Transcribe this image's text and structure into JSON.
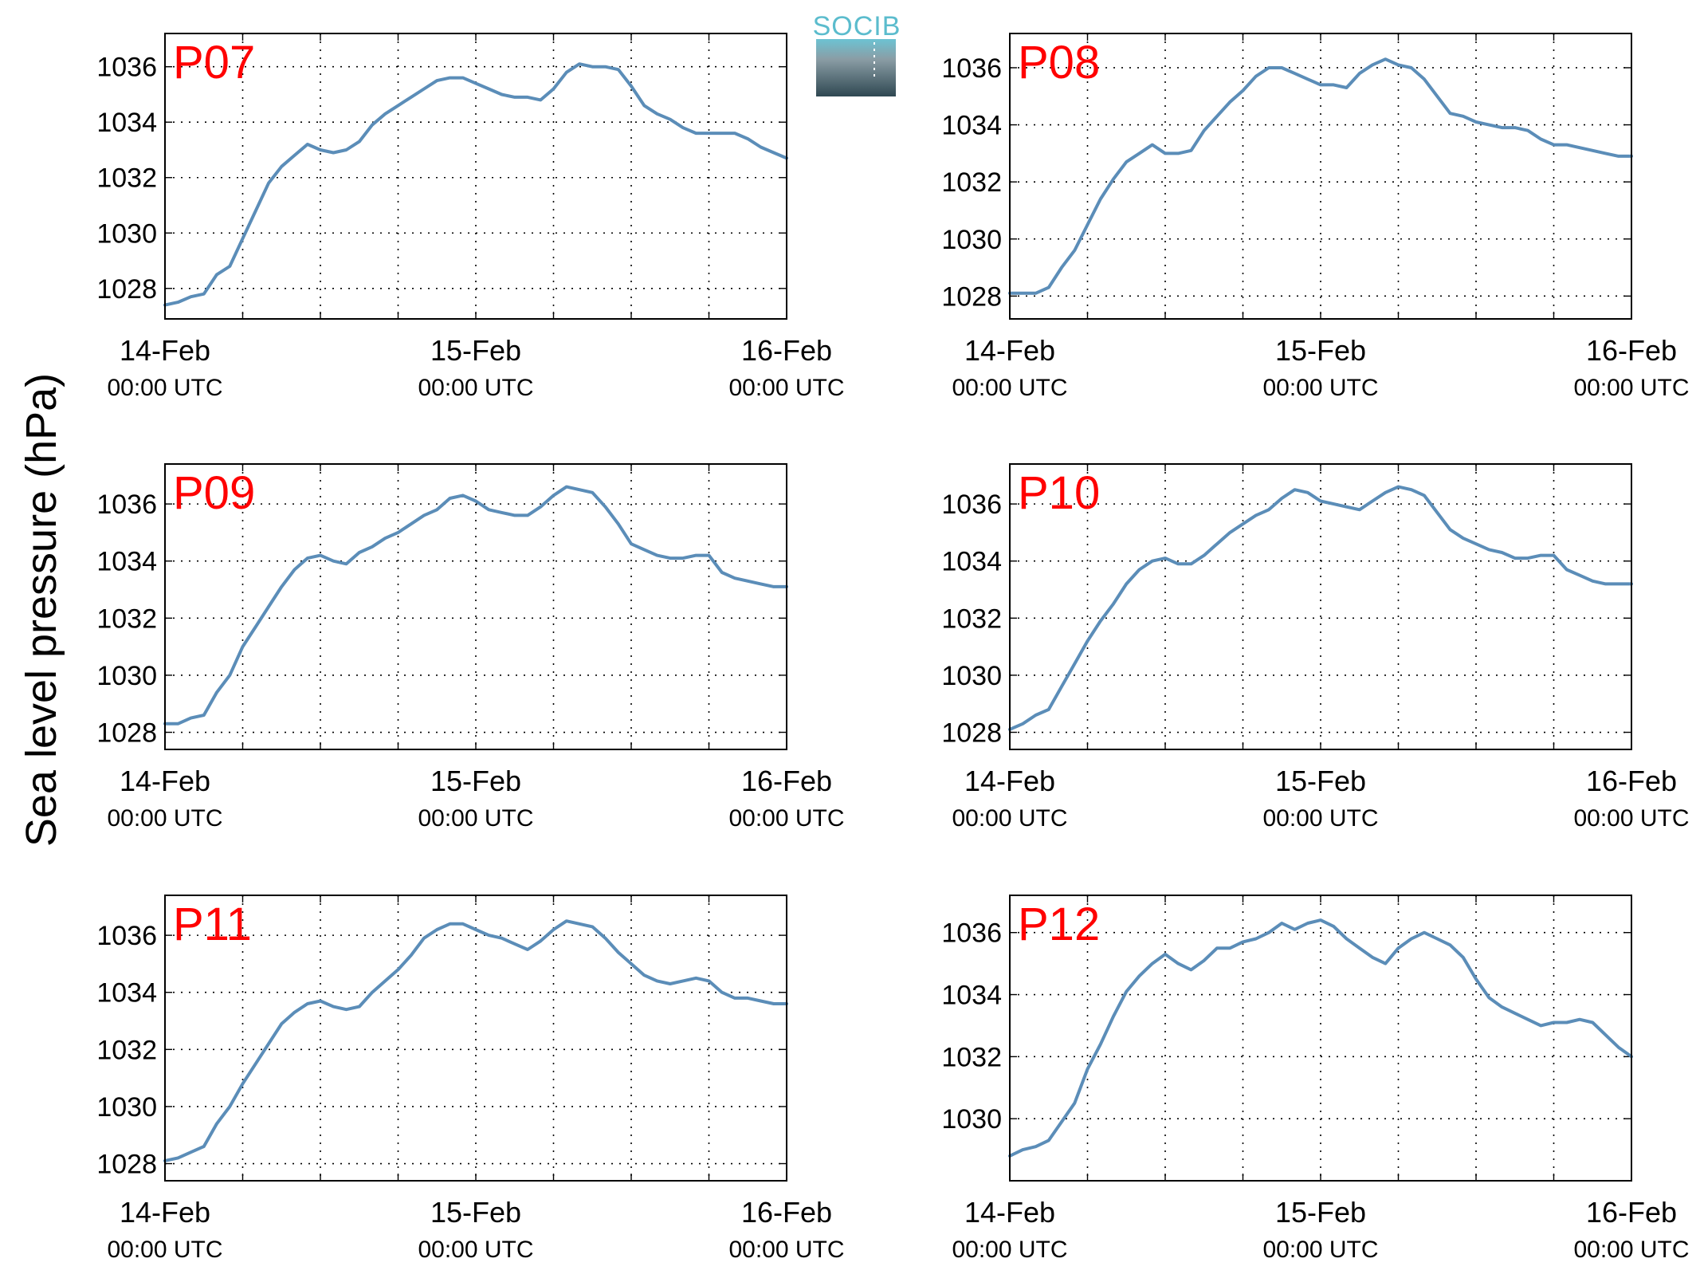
{
  "figure": {
    "ylabel": "Sea level pressure (hPa)",
    "logo_text": "SOCIB",
    "logo_colors": {
      "text": "#5bbccd",
      "top": "#6cc3d3",
      "bottom": "#2f4852"
    },
    "line_color": "#5b8db8",
    "label_color": "#ff0000"
  },
  "chart_data": [
    {
      "type": "line",
      "title": "P07",
      "x_ticks": [
        {
          "day": "14-Feb",
          "time": "00:00 UTC"
        },
        {
          "day": "15-Feb",
          "time": "00:00 UTC"
        },
        {
          "day": "16-Feb",
          "time": "00:00 UTC"
        }
      ],
      "xlim": [
        "2013-02-14T00:00Z",
        "2013-02-16T00:00Z"
      ],
      "ylim": [
        1026.9,
        1037.2
      ],
      "yticks": [
        1028,
        1030,
        1032,
        1034,
        1036
      ],
      "grid": true,
      "x": [
        "2013-02-14T00:00Z",
        "2013-02-14T01:00Z",
        "2013-02-14T02:00Z",
        "2013-02-14T03:00Z",
        "2013-02-14T04:00Z",
        "2013-02-14T05:00Z",
        "2013-02-14T06:00Z",
        "2013-02-14T07:00Z",
        "2013-02-14T08:00Z",
        "2013-02-14T09:00Z",
        "2013-02-14T10:00Z",
        "2013-02-14T11:00Z",
        "2013-02-14T12:00Z",
        "2013-02-14T13:00Z",
        "2013-02-14T14:00Z",
        "2013-02-14T15:00Z",
        "2013-02-14T16:00Z",
        "2013-02-14T17:00Z",
        "2013-02-14T18:00Z",
        "2013-02-14T19:00Z",
        "2013-02-14T20:00Z",
        "2013-02-14T21:00Z",
        "2013-02-14T22:00Z",
        "2013-02-14T23:00Z",
        "2013-02-15T00:00Z",
        "2013-02-15T01:00Z",
        "2013-02-15T02:00Z",
        "2013-02-15T03:00Z",
        "2013-02-15T04:00Z",
        "2013-02-15T05:00Z",
        "2013-02-15T06:00Z",
        "2013-02-15T07:00Z",
        "2013-02-15T08:00Z",
        "2013-02-15T09:00Z",
        "2013-02-15T10:00Z",
        "2013-02-15T11:00Z",
        "2013-02-15T12:00Z",
        "2013-02-15T13:00Z",
        "2013-02-15T14:00Z",
        "2013-02-15T15:00Z",
        "2013-02-15T16:00Z",
        "2013-02-15T17:00Z",
        "2013-02-15T18:00Z",
        "2013-02-15T19:00Z",
        "2013-02-15T20:00Z",
        "2013-02-15T21:00Z",
        "2013-02-15T22:00Z",
        "2013-02-15T23:00Z",
        "2013-02-16T00:00Z"
      ],
      "y": [
        1027.4,
        1027.5,
        1027.7,
        1027.8,
        1028.5,
        1028.8,
        1029.8,
        1030.8,
        1031.8,
        1032.4,
        1032.8,
        1033.2,
        1033.0,
        1032.9,
        1033.0,
        1033.3,
        1033.9,
        1034.3,
        1034.6,
        1034.9,
        1035.2,
        1035.5,
        1035.6,
        1035.6,
        1035.4,
        1035.2,
        1035.0,
        1034.9,
        1034.9,
        1034.8,
        1035.2,
        1035.8,
        1036.1,
        1036.0,
        1036.0,
        1035.9,
        1035.3,
        1034.6,
        1034.3,
        1034.1,
        1033.8,
        1033.6,
        1033.6,
        1033.6,
        1033.6,
        1033.4,
        1033.1,
        1032.9,
        1032.7
      ]
    },
    {
      "type": "line",
      "title": "P08",
      "x_ticks": [
        {
          "day": "14-Feb",
          "time": "00:00 UTC"
        },
        {
          "day": "15-Feb",
          "time": "00:00 UTC"
        },
        {
          "day": "16-Feb",
          "time": "00:00 UTC"
        }
      ],
      "xlim": [
        "2013-02-14T00:00Z",
        "2013-02-16T00:00Z"
      ],
      "ylim": [
        1027.2,
        1037.2
      ],
      "yticks": [
        1028,
        1030,
        1032,
        1034,
        1036
      ],
      "grid": true,
      "x": [
        "2013-02-14T00:00Z",
        "2013-02-14T01:00Z",
        "2013-02-14T02:00Z",
        "2013-02-14T03:00Z",
        "2013-02-14T04:00Z",
        "2013-02-14T05:00Z",
        "2013-02-14T06:00Z",
        "2013-02-14T07:00Z",
        "2013-02-14T08:00Z",
        "2013-02-14T09:00Z",
        "2013-02-14T10:00Z",
        "2013-02-14T11:00Z",
        "2013-02-14T12:00Z",
        "2013-02-14T13:00Z",
        "2013-02-14T14:00Z",
        "2013-02-14T15:00Z",
        "2013-02-14T16:00Z",
        "2013-02-14T17:00Z",
        "2013-02-14T18:00Z",
        "2013-02-14T19:00Z",
        "2013-02-14T20:00Z",
        "2013-02-14T21:00Z",
        "2013-02-14T22:00Z",
        "2013-02-14T23:00Z",
        "2013-02-15T00:00Z",
        "2013-02-15T01:00Z",
        "2013-02-15T02:00Z",
        "2013-02-15T03:00Z",
        "2013-02-15T04:00Z",
        "2013-02-15T05:00Z",
        "2013-02-15T06:00Z",
        "2013-02-15T07:00Z",
        "2013-02-15T08:00Z",
        "2013-02-15T09:00Z",
        "2013-02-15T10:00Z",
        "2013-02-15T11:00Z",
        "2013-02-15T12:00Z",
        "2013-02-15T13:00Z",
        "2013-02-15T14:00Z",
        "2013-02-15T15:00Z",
        "2013-02-15T16:00Z",
        "2013-02-15T17:00Z",
        "2013-02-15T18:00Z",
        "2013-02-15T19:00Z",
        "2013-02-15T20:00Z",
        "2013-02-15T21:00Z",
        "2013-02-15T22:00Z",
        "2013-02-15T23:00Z",
        "2013-02-16T00:00Z"
      ],
      "y": [
        1028.1,
        1028.1,
        1028.1,
        1028.3,
        1029.0,
        1029.6,
        1030.5,
        1031.4,
        1032.1,
        1032.7,
        1033.0,
        1033.3,
        1033.0,
        1033.0,
        1033.1,
        1033.8,
        1034.3,
        1034.8,
        1035.2,
        1035.7,
        1036.0,
        1036.0,
        1035.8,
        1035.6,
        1035.4,
        1035.4,
        1035.3,
        1035.8,
        1036.1,
        1036.3,
        1036.1,
        1036.0,
        1035.6,
        1035.0,
        1034.4,
        1034.3,
        1034.1,
        1034.0,
        1033.9,
        1033.9,
        1033.8,
        1033.5,
        1033.3,
        1033.3,
        1033.2,
        1033.1,
        1033.0,
        1032.9,
        1032.9
      ]
    },
    {
      "type": "line",
      "title": "P09",
      "x_ticks": [
        {
          "day": "14-Feb",
          "time": "00:00 UTC"
        },
        {
          "day": "15-Feb",
          "time": "00:00 UTC"
        },
        {
          "day": "16-Feb",
          "time": "00:00 UTC"
        }
      ],
      "xlim": [
        "2013-02-14T00:00Z",
        "2013-02-16T00:00Z"
      ],
      "ylim": [
        1027.4,
        1037.4
      ],
      "yticks": [
        1028,
        1030,
        1032,
        1034,
        1036
      ],
      "grid": true,
      "x": [
        "2013-02-14T00:00Z",
        "2013-02-14T01:00Z",
        "2013-02-14T02:00Z",
        "2013-02-14T03:00Z",
        "2013-02-14T04:00Z",
        "2013-02-14T05:00Z",
        "2013-02-14T06:00Z",
        "2013-02-14T07:00Z",
        "2013-02-14T08:00Z",
        "2013-02-14T09:00Z",
        "2013-02-14T10:00Z",
        "2013-02-14T11:00Z",
        "2013-02-14T12:00Z",
        "2013-02-14T13:00Z",
        "2013-02-14T14:00Z",
        "2013-02-14T15:00Z",
        "2013-02-14T16:00Z",
        "2013-02-14T17:00Z",
        "2013-02-14T18:00Z",
        "2013-02-14T19:00Z",
        "2013-02-14T20:00Z",
        "2013-02-14T21:00Z",
        "2013-02-14T22:00Z",
        "2013-02-14T23:00Z",
        "2013-02-15T00:00Z",
        "2013-02-15T01:00Z",
        "2013-02-15T02:00Z",
        "2013-02-15T03:00Z",
        "2013-02-15T04:00Z",
        "2013-02-15T05:00Z",
        "2013-02-15T06:00Z",
        "2013-02-15T07:00Z",
        "2013-02-15T08:00Z",
        "2013-02-15T09:00Z",
        "2013-02-15T10:00Z",
        "2013-02-15T11:00Z",
        "2013-02-15T12:00Z",
        "2013-02-15T13:00Z",
        "2013-02-15T14:00Z",
        "2013-02-15T15:00Z",
        "2013-02-15T16:00Z",
        "2013-02-15T17:00Z",
        "2013-02-15T18:00Z",
        "2013-02-15T19:00Z",
        "2013-02-15T20:00Z",
        "2013-02-15T21:00Z",
        "2013-02-15T22:00Z",
        "2013-02-15T23:00Z",
        "2013-02-16T00:00Z"
      ],
      "y": [
        1028.3,
        1028.3,
        1028.5,
        1028.6,
        1029.4,
        1030.0,
        1031.0,
        1031.7,
        1032.4,
        1033.1,
        1033.7,
        1034.1,
        1034.2,
        1034.0,
        1033.9,
        1034.3,
        1034.5,
        1034.8,
        1035.0,
        1035.3,
        1035.6,
        1035.8,
        1036.2,
        1036.3,
        1036.1,
        1035.8,
        1035.7,
        1035.6,
        1035.6,
        1035.9,
        1036.3,
        1036.6,
        1036.5,
        1036.4,
        1035.9,
        1035.3,
        1034.6,
        1034.4,
        1034.2,
        1034.1,
        1034.1,
        1034.2,
        1034.2,
        1033.6,
        1033.4,
        1033.3,
        1033.2,
        1033.1,
        1033.1
      ]
    },
    {
      "type": "line",
      "title": "P10",
      "x_ticks": [
        {
          "day": "14-Feb",
          "time": "00:00 UTC"
        },
        {
          "day": "15-Feb",
          "time": "00:00 UTC"
        },
        {
          "day": "16-Feb",
          "time": "00:00 UTC"
        }
      ],
      "xlim": [
        "2013-02-14T00:00Z",
        "2013-02-16T00:00Z"
      ],
      "ylim": [
        1027.4,
        1037.4
      ],
      "yticks": [
        1028,
        1030,
        1032,
        1034,
        1036
      ],
      "grid": true,
      "x": [
        "2013-02-14T00:00Z",
        "2013-02-14T01:00Z",
        "2013-02-14T02:00Z",
        "2013-02-14T03:00Z",
        "2013-02-14T04:00Z",
        "2013-02-14T05:00Z",
        "2013-02-14T06:00Z",
        "2013-02-14T07:00Z",
        "2013-02-14T08:00Z",
        "2013-02-14T09:00Z",
        "2013-02-14T10:00Z",
        "2013-02-14T11:00Z",
        "2013-02-14T12:00Z",
        "2013-02-14T13:00Z",
        "2013-02-14T14:00Z",
        "2013-02-14T15:00Z",
        "2013-02-14T16:00Z",
        "2013-02-14T17:00Z",
        "2013-02-14T18:00Z",
        "2013-02-14T19:00Z",
        "2013-02-14T20:00Z",
        "2013-02-14T21:00Z",
        "2013-02-14T22:00Z",
        "2013-02-14T23:00Z",
        "2013-02-15T00:00Z",
        "2013-02-15T01:00Z",
        "2013-02-15T02:00Z",
        "2013-02-15T03:00Z",
        "2013-02-15T04:00Z",
        "2013-02-15T05:00Z",
        "2013-02-15T06:00Z",
        "2013-02-15T07:00Z",
        "2013-02-15T08:00Z",
        "2013-02-15T09:00Z",
        "2013-02-15T10:00Z",
        "2013-02-15T11:00Z",
        "2013-02-15T12:00Z",
        "2013-02-15T13:00Z",
        "2013-02-15T14:00Z",
        "2013-02-15T15:00Z",
        "2013-02-15T16:00Z",
        "2013-02-15T17:00Z",
        "2013-02-15T18:00Z",
        "2013-02-15T19:00Z",
        "2013-02-15T20:00Z",
        "2013-02-15T21:00Z",
        "2013-02-15T22:00Z",
        "2013-02-15T23:00Z",
        "2013-02-16T00:00Z"
      ],
      "y": [
        1028.1,
        1028.3,
        1028.6,
        1028.8,
        1029.6,
        1030.4,
        1031.2,
        1031.9,
        1032.5,
        1033.2,
        1033.7,
        1034.0,
        1034.1,
        1033.9,
        1033.9,
        1034.2,
        1034.6,
        1035.0,
        1035.3,
        1035.6,
        1035.8,
        1036.2,
        1036.5,
        1036.4,
        1036.1,
        1036.0,
        1035.9,
        1035.8,
        1036.1,
        1036.4,
        1036.6,
        1036.5,
        1036.3,
        1035.7,
        1035.1,
        1034.8,
        1034.6,
        1034.4,
        1034.3,
        1034.1,
        1034.1,
        1034.2,
        1034.2,
        1033.7,
        1033.5,
        1033.3,
        1033.2,
        1033.2,
        1033.2
      ]
    },
    {
      "type": "line",
      "title": "P11",
      "x_ticks": [
        {
          "day": "14-Feb",
          "time": "00:00 UTC"
        },
        {
          "day": "15-Feb",
          "time": "00:00 UTC"
        },
        {
          "day": "16-Feb",
          "time": "00:00 UTC"
        }
      ],
      "xlim": [
        "2013-02-14T00:00Z",
        "2013-02-16T00:00Z"
      ],
      "ylim": [
        1027.4,
        1037.4
      ],
      "yticks": [
        1028,
        1030,
        1032,
        1034,
        1036
      ],
      "grid": true,
      "x": [
        "2013-02-14T00:00Z",
        "2013-02-14T01:00Z",
        "2013-02-14T02:00Z",
        "2013-02-14T03:00Z",
        "2013-02-14T04:00Z",
        "2013-02-14T05:00Z",
        "2013-02-14T06:00Z",
        "2013-02-14T07:00Z",
        "2013-02-14T08:00Z",
        "2013-02-14T09:00Z",
        "2013-02-14T10:00Z",
        "2013-02-14T11:00Z",
        "2013-02-14T12:00Z",
        "2013-02-14T13:00Z",
        "2013-02-14T14:00Z",
        "2013-02-14T15:00Z",
        "2013-02-14T16:00Z",
        "2013-02-14T17:00Z",
        "2013-02-14T18:00Z",
        "2013-02-14T19:00Z",
        "2013-02-14T20:00Z",
        "2013-02-14T21:00Z",
        "2013-02-14T22:00Z",
        "2013-02-14T23:00Z",
        "2013-02-15T00:00Z",
        "2013-02-15T01:00Z",
        "2013-02-15T02:00Z",
        "2013-02-15T03:00Z",
        "2013-02-15T04:00Z",
        "2013-02-15T05:00Z",
        "2013-02-15T06:00Z",
        "2013-02-15T07:00Z",
        "2013-02-15T08:00Z",
        "2013-02-15T09:00Z",
        "2013-02-15T10:00Z",
        "2013-02-15T11:00Z",
        "2013-02-15T12:00Z",
        "2013-02-15T13:00Z",
        "2013-02-15T14:00Z",
        "2013-02-15T15:00Z",
        "2013-02-15T16:00Z",
        "2013-02-15T17:00Z",
        "2013-02-15T18:00Z",
        "2013-02-15T19:00Z",
        "2013-02-15T20:00Z",
        "2013-02-15T21:00Z",
        "2013-02-15T22:00Z",
        "2013-02-15T23:00Z",
        "2013-02-16T00:00Z"
      ],
      "y": [
        1028.1,
        1028.2,
        1028.4,
        1028.6,
        1029.4,
        1030.0,
        1030.8,
        1031.5,
        1032.2,
        1032.9,
        1033.3,
        1033.6,
        1033.7,
        1033.5,
        1033.4,
        1033.5,
        1034.0,
        1034.4,
        1034.8,
        1035.3,
        1035.9,
        1036.2,
        1036.4,
        1036.4,
        1036.2,
        1036.0,
        1035.9,
        1035.7,
        1035.5,
        1035.8,
        1036.2,
        1036.5,
        1036.4,
        1036.3,
        1035.9,
        1035.4,
        1035.0,
        1034.6,
        1034.4,
        1034.3,
        1034.4,
        1034.5,
        1034.4,
        1034.0,
        1033.8,
        1033.8,
        1033.7,
        1033.6,
        1033.6
      ]
    },
    {
      "type": "line",
      "title": "P12",
      "x_ticks": [
        {
          "day": "14-Feb",
          "time": "00:00 UTC"
        },
        {
          "day": "15-Feb",
          "time": "00:00 UTC"
        },
        {
          "day": "16-Feb",
          "time": "00:00 UTC"
        }
      ],
      "xlim": [
        "2013-02-14T00:00Z",
        "2013-02-16T00:00Z"
      ],
      "ylim": [
        1028.0,
        1037.2
      ],
      "yticks": [
        1030,
        1032,
        1034,
        1036
      ],
      "grid": true,
      "x": [
        "2013-02-14T00:00Z",
        "2013-02-14T01:00Z",
        "2013-02-14T02:00Z",
        "2013-02-14T03:00Z",
        "2013-02-14T04:00Z",
        "2013-02-14T05:00Z",
        "2013-02-14T06:00Z",
        "2013-02-14T07:00Z",
        "2013-02-14T08:00Z",
        "2013-02-14T09:00Z",
        "2013-02-14T10:00Z",
        "2013-02-14T11:00Z",
        "2013-02-14T12:00Z",
        "2013-02-14T13:00Z",
        "2013-02-14T14:00Z",
        "2013-02-14T15:00Z",
        "2013-02-14T16:00Z",
        "2013-02-14T17:00Z",
        "2013-02-14T18:00Z",
        "2013-02-14T19:00Z",
        "2013-02-14T20:00Z",
        "2013-02-14T21:00Z",
        "2013-02-14T22:00Z",
        "2013-02-14T23:00Z",
        "2013-02-15T00:00Z",
        "2013-02-15T01:00Z",
        "2013-02-15T02:00Z",
        "2013-02-15T03:00Z",
        "2013-02-15T04:00Z",
        "2013-02-15T05:00Z",
        "2013-02-15T06:00Z",
        "2013-02-15T07:00Z",
        "2013-02-15T08:00Z",
        "2013-02-15T09:00Z",
        "2013-02-15T10:00Z",
        "2013-02-15T11:00Z",
        "2013-02-15T12:00Z",
        "2013-02-15T13:00Z",
        "2013-02-15T14:00Z",
        "2013-02-15T15:00Z",
        "2013-02-15T16:00Z",
        "2013-02-15T17:00Z",
        "2013-02-15T18:00Z",
        "2013-02-15T19:00Z",
        "2013-02-15T20:00Z",
        "2013-02-15T21:00Z",
        "2013-02-15T22:00Z",
        "2013-02-15T23:00Z",
        "2013-02-16T00:00Z"
      ],
      "y": [
        1028.8,
        1029.0,
        1029.1,
        1029.3,
        1029.9,
        1030.5,
        1031.6,
        1032.4,
        1033.3,
        1034.1,
        1034.6,
        1035.0,
        1035.3,
        1035.0,
        1034.8,
        1035.1,
        1035.5,
        1035.5,
        1035.7,
        1035.8,
        1036.0,
        1036.3,
        1036.1,
        1036.3,
        1036.4,
        1036.2,
        1035.8,
        1035.5,
        1035.2,
        1035.0,
        1035.5,
        1035.8,
        1036.0,
        1035.8,
        1035.6,
        1035.2,
        1034.5,
        1033.9,
        1033.6,
        1033.4,
        1033.2,
        1033.0,
        1033.1,
        1033.1,
        1033.2,
        1033.1,
        1032.7,
        1032.3,
        1032.0
      ]
    }
  ]
}
